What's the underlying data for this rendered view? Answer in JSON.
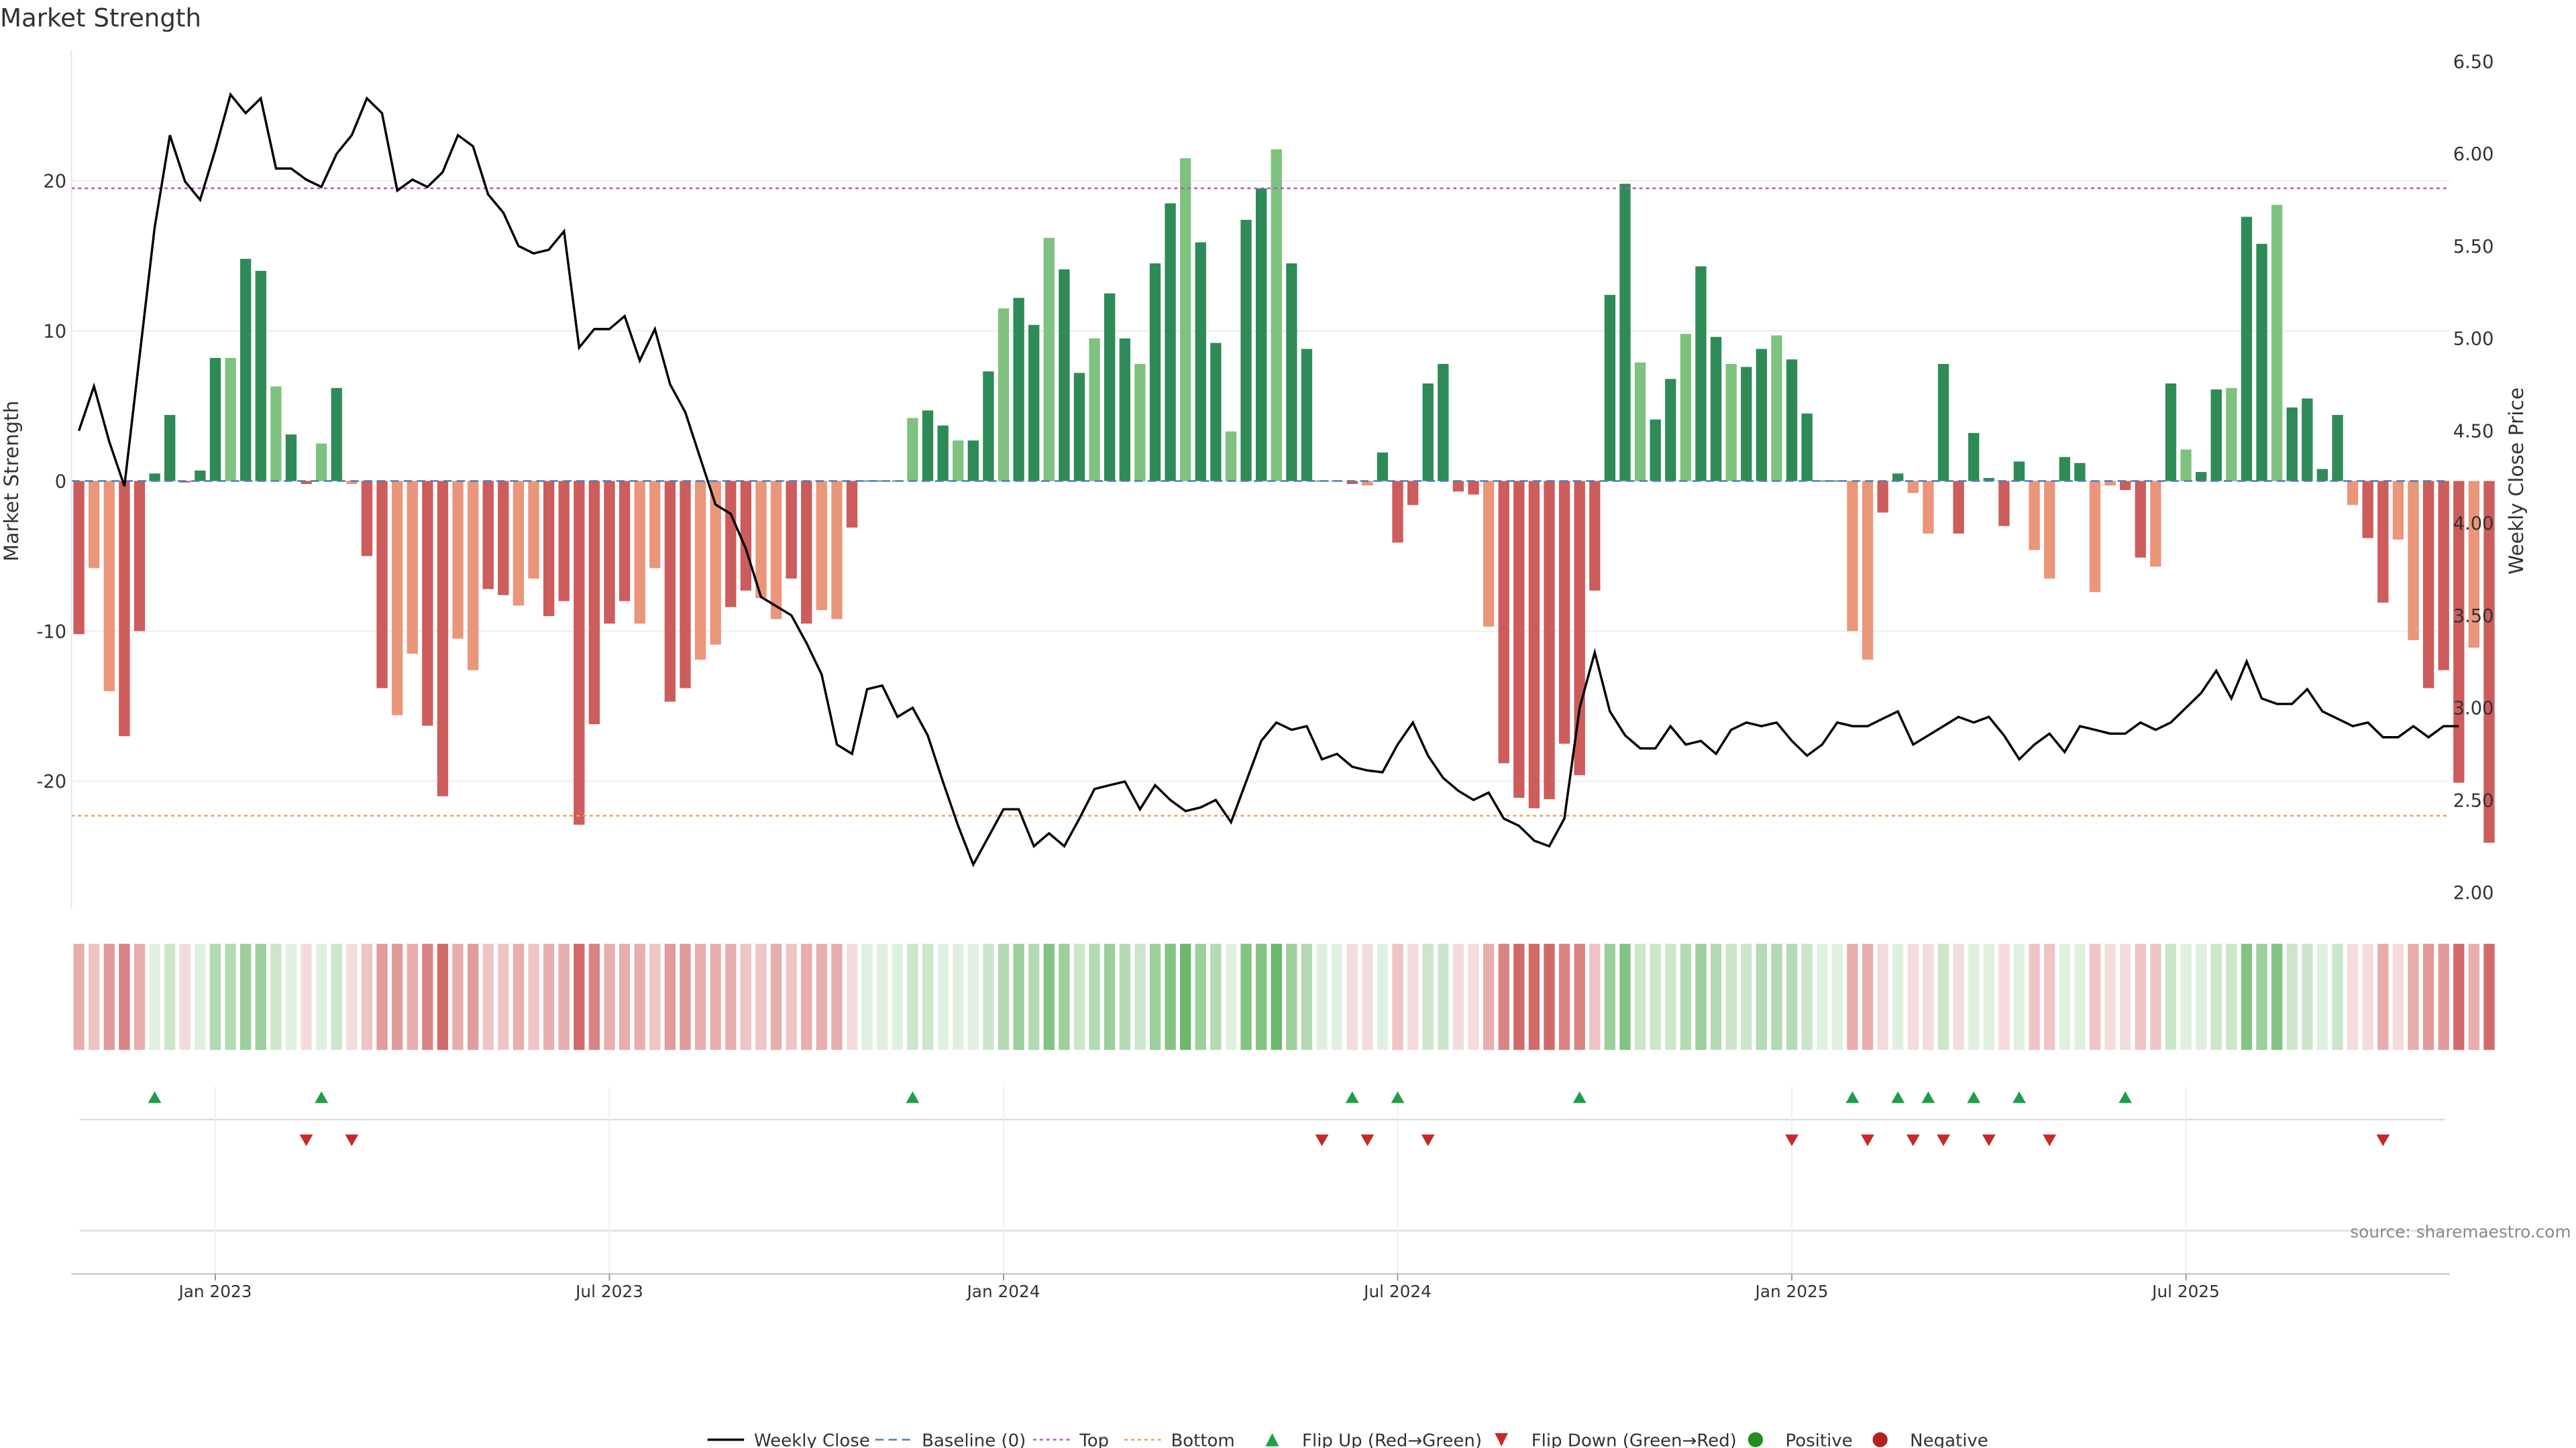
{
  "title": "Market Strength",
  "source": "source: sharemaestro.com",
  "colors": {
    "dark_green": "#2e8b57",
    "light_green": "#7fc27f",
    "dark_red": "#cd5c5c",
    "light_red": "#e9967a",
    "top_line": "#c04fd0",
    "bottom_line": "#f0a050",
    "baseline": "#4a7fb5",
    "price": "#000000",
    "flip_up": "#1e9e4a",
    "flip_down": "#c82828",
    "positive": "#228b22",
    "negative": "#b22222"
  },
  "chart_data": {
    "type": "bar",
    "title": "Market Strength",
    "ylabel_left": "Market Strength",
    "ylabel_right": "Weekly Close Price",
    "ylim_left": [
      -28.5,
      28.5
    ],
    "ylim_right": [
      1.9,
      6.6
    ],
    "yticks_left": [
      -20,
      -10,
      0,
      10,
      20
    ],
    "yticks_right": [
      "2.00",
      "2.50",
      "3.00",
      "3.50",
      "4.00",
      "4.50",
      "5.00",
      "5.50",
      "6.00",
      "6.50"
    ],
    "x_ticks": [
      "Jan 2023",
      "Jul 2023",
      "Jan 2024",
      "Jul 2024",
      "Jan 2025",
      "Jul 2025"
    ],
    "x_tick_weeks": [
      9,
      35,
      61,
      87,
      113,
      139
    ],
    "top_level": 19.5,
    "bottom_level": -22.3,
    "grid": true,
    "legend_position": "bottom-center",
    "strength": [
      -10.2,
      -5.8,
      -14,
      -17,
      -10,
      0.5,
      4.4,
      -0.1,
      0.7,
      8.2,
      8.2,
      14.8,
      14,
      6.3,
      3.1,
      -0.2,
      2.5,
      6.2,
      -0.2,
      -5,
      -13.8,
      -15.6,
      -11.5,
      -16.3,
      -21,
      -10.5,
      -12.6,
      -7.2,
      -7.6,
      -8.3,
      -6.5,
      -9,
      -8,
      -22.9,
      -16.2,
      -9.5,
      -8,
      -9.5,
      -5.8,
      -14.7,
      -13.8,
      -11.9,
      -10.9,
      -8.4,
      -7.3,
      -7.8,
      -9.2,
      -6.5,
      -9.5,
      -8.6,
      -9.2,
      -3.1,
      0,
      0,
      0,
      4.2,
      4.7,
      3.7,
      2.7,
      2.7,
      7.3,
      11.5,
      12.2,
      10.4,
      16.2,
      14.1,
      7.2,
      9.5,
      12.5,
      9.5,
      7.8,
      14.5,
      18.5,
      21.5,
      15.9,
      9.2,
      3.3,
      17.4,
      19.5,
      22.1,
      14.5,
      8.8,
      0,
      0,
      -0.2,
      -0.3,
      1.9,
      -4.1,
      -1.6,
      6.5,
      7.8,
      -0.7,
      -0.9,
      -9.7,
      -18.8,
      -21.1,
      -21.8,
      -21.2,
      -17.5,
      -19.6,
      -7.3,
      12.4,
      19.8,
      7.9,
      4.1,
      6.8,
      9.8,
      14.3,
      9.6,
      7.8,
      7.6,
      8.8,
      9.7,
      8.1,
      4.5,
      0,
      0,
      -10,
      -11.9,
      -2.1,
      0.5,
      -0.8,
      -3.5,
      7.8,
      -3.5,
      3.2,
      0.2,
      -3,
      1.3,
      -4.6,
      -6.5,
      1.6,
      1.2,
      -7.4,
      -0.3,
      -0.6,
      -5.1,
      -5.7,
      6.5,
      2.1,
      0.6,
      6.1,
      6.2,
      17.6,
      15.8,
      18.4,
      4.9,
      5.5,
      0.8,
      4.4,
      -1.6,
      -3.8,
      -8.1,
      -3.9,
      -10.6,
      -13.8,
      -12.6,
      -20.1,
      -11.1,
      -24.1
    ],
    "weekly_close": [
      4.5,
      4.74,
      4.44,
      4.2,
      4.9,
      5.6,
      6.1,
      5.85,
      5.75,
      6.02,
      6.32,
      6.22,
      6.3,
      5.92,
      5.92,
      5.86,
      5.82,
      6.0,
      6.1,
      6.3,
      6.22,
      5.8,
      5.86,
      5.82,
      5.9,
      6.1,
      6.04,
      5.78,
      5.68,
      5.5,
      5.46,
      5.48,
      5.58,
      4.95,
      5.05,
      5.05,
      5.12,
      4.88,
      5.05,
      4.75,
      4.6,
      4.35,
      4.1,
      4.05,
      3.86,
      3.6,
      3.55,
      3.5,
      3.35,
      3.18,
      2.8,
      2.75,
      3.1,
      3.12,
      2.95,
      3.0,
      2.85,
      2.6,
      2.36,
      2.15,
      2.3,
      2.45,
      2.45,
      2.25,
      2.32,
      2.25,
      2.4,
      2.56,
      2.58,
      2.6,
      2.45,
      2.58,
      2.5,
      2.44,
      2.46,
      2.5,
      2.38,
      2.6,
      2.82,
      2.92,
      2.88,
      2.9,
      2.72,
      2.75,
      2.68,
      2.66,
      2.65,
      2.8,
      2.92,
      2.74,
      2.62,
      2.55,
      2.5,
      2.54,
      2.4,
      2.36,
      2.28,
      2.25,
      2.4,
      3.0,
      3.3,
      2.98,
      2.85,
      2.78,
      2.78,
      2.9,
      2.8,
      2.82,
      2.75,
      2.88,
      2.92,
      2.9,
      2.92,
      2.82,
      2.74,
      2.8,
      2.92,
      2.9,
      2.9,
      2.94,
      2.98,
      2.8,
      2.85,
      2.9,
      2.95,
      2.92,
      2.95,
      2.85,
      2.72,
      2.8,
      2.86,
      2.76,
      2.9,
      2.88,
      2.86,
      2.86,
      2.92,
      2.88,
      2.92,
      3.0,
      3.08,
      3.2,
      3.05,
      3.25,
      3.05,
      3.02,
      3.02,
      3.1,
      2.98,
      2.94,
      2.9,
      2.92,
      2.84,
      2.84,
      2.9,
      2.84,
      2.9,
      2.9
    ],
    "heat_weeks": [
      0,
      0,
      0,
      0,
      0,
      4,
      4,
      4,
      4,
      4,
      4,
      4,
      4,
      4,
      4,
      4,
      4,
      4,
      4,
      0,
      0,
      0,
      0,
      0,
      0,
      0,
      0,
      0,
      0,
      0,
      0,
      0,
      0,
      0,
      0,
      0,
      0,
      0,
      0,
      0,
      0,
      0,
      0,
      0,
      0,
      0,
      0,
      0,
      0,
      0,
      0,
      0,
      0,
      4,
      4,
      4,
      4,
      4,
      4,
      4,
      4,
      4,
      4,
      4,
      4,
      4,
      4,
      4,
      4,
      4,
      4,
      4,
      4,
      4,
      4,
      4,
      4,
      4,
      4,
      4,
      4,
      4,
      0,
      0,
      0,
      0,
      4,
      0,
      0,
      4,
      4,
      0,
      0,
      0,
      0,
      0,
      0,
      0,
      0,
      0,
      0,
      4,
      4,
      4,
      4,
      4,
      4,
      4,
      4,
      4,
      4,
      4,
      4,
      4,
      4,
      4,
      4,
      0,
      0,
      0,
      0,
      0,
      0,
      4,
      0,
      4,
      0,
      0,
      4,
      0,
      0,
      4,
      4,
      0,
      0,
      0,
      0,
      0,
      4,
      4,
      4,
      4,
      4,
      4,
      4,
      4,
      4,
      4,
      4,
      4,
      0,
      0,
      0,
      0,
      0,
      0,
      0,
      0,
      0,
      0
    ],
    "flip_up_weeks": [
      5,
      16,
      55,
      84,
      87,
      99,
      117,
      120,
      122,
      125,
      128,
      135
    ],
    "flip_down_weeks": [
      15,
      18,
      82,
      85,
      89,
      113,
      118,
      121,
      123,
      126,
      130,
      152
    ]
  },
  "legend": [
    {
      "key": "price",
      "label": "Weekly Close"
    },
    {
      "key": "baseline",
      "label": "Baseline (0)"
    },
    {
      "key": "top",
      "label": "Top"
    },
    {
      "key": "bottom",
      "label": "Bottom"
    },
    {
      "key": "flip_up",
      "label": "Flip Up (Red→Green)"
    },
    {
      "key": "flip_down",
      "label": "Flip Down (Green→Red)"
    },
    {
      "key": "positive",
      "label": "Positive"
    },
    {
      "key": "negative",
      "label": "Negative"
    }
  ]
}
